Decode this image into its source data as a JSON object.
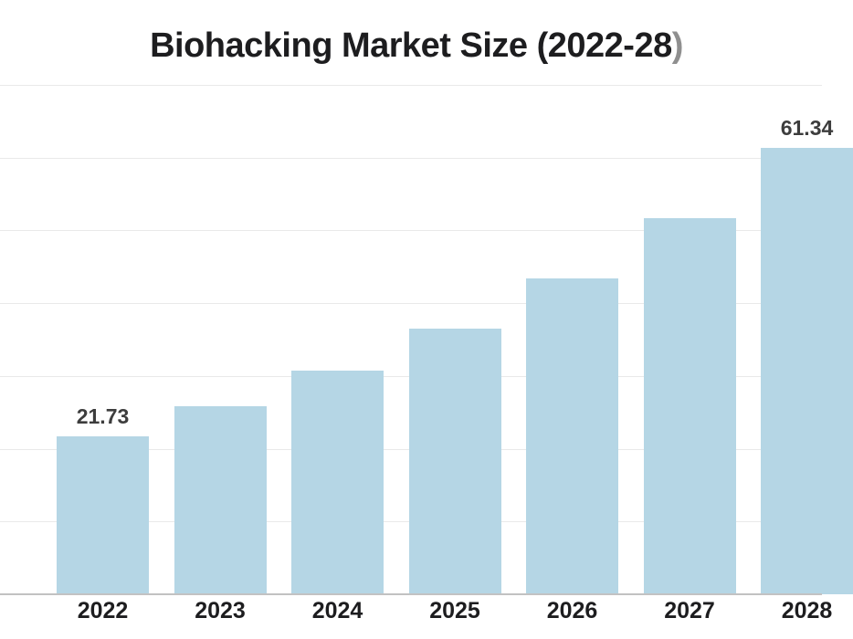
{
  "title": {
    "text": "Biohacking Market Size (2022-28",
    "suffix": ")"
  },
  "chart_data": {
    "type": "bar",
    "title": "Biohacking Market Size (2022-28)",
    "categories": [
      "2022",
      "2023",
      "2024",
      "2025",
      "2026",
      "2027",
      "2028"
    ],
    "values": [
      21.73,
      25.84,
      30.72,
      36.53,
      43.43,
      51.64,
      61.34
    ],
    "data_labels": [
      "21.73",
      "",
      "",
      "",
      "",
      "",
      "61.34"
    ],
    "xlabel": "",
    "ylabel": "",
    "ylim": [
      0,
      70
    ],
    "grid_step": 10,
    "grid": "horizontal",
    "y_tick_labels_visible": false,
    "legend": "none",
    "clipped_right_edge": true,
    "colors": {
      "bar": "#b5d6e5",
      "gridline": "#e9e9e9",
      "axis_line": "#c2c2c2",
      "title": "#1d1d1f",
      "title_paren": "#8f8f8f",
      "value_label": "#3d3d3d",
      "x_label": "#1d1d1f",
      "background": "#ffffff"
    }
  }
}
